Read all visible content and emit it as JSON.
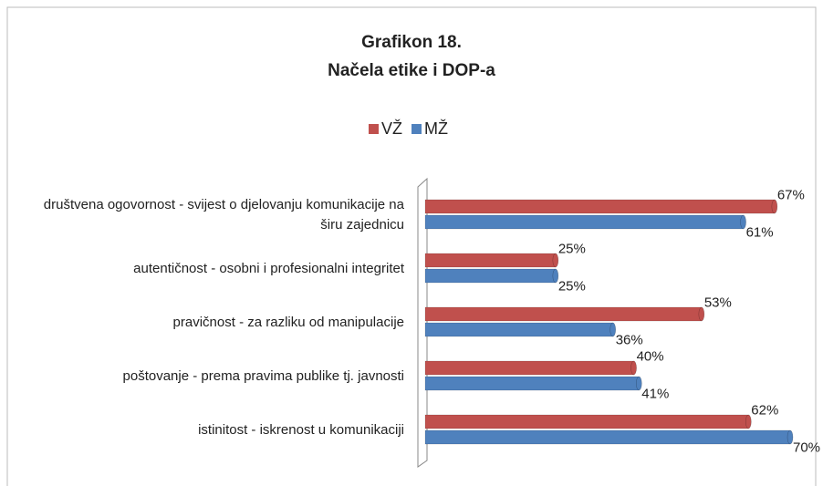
{
  "chart_data": {
    "type": "bar",
    "orientation": "horizontal",
    "title": [
      "Grafikon 18.",
      "Načela etike i DOP-a"
    ],
    "categories": [
      "društvena ogovornost - svijest o djelovanju komunikacije na širu zajednicu",
      "autentičnost - osobni i profesionalni integritet",
      "pravičnost - za razliku od manipulacije",
      "poštovanje - prema pravima publike tj. javnosti",
      "istinitost - iskrenost u komunikaciji"
    ],
    "series": [
      {
        "name": "VŽ",
        "color": "#c0504d",
        "values": [
          67,
          25,
          53,
          40,
          62
        ],
        "value_labels": [
          "67%",
          "25%",
          "53%",
          "40%",
          "62%"
        ]
      },
      {
        "name": "MŽ",
        "color": "#4f81bd",
        "values": [
          61,
          25,
          36,
          41,
          70
        ],
        "value_labels": [
          "61%",
          "25%",
          "36%",
          "41%",
          "70%"
        ]
      }
    ],
    "legend": "top"
  }
}
